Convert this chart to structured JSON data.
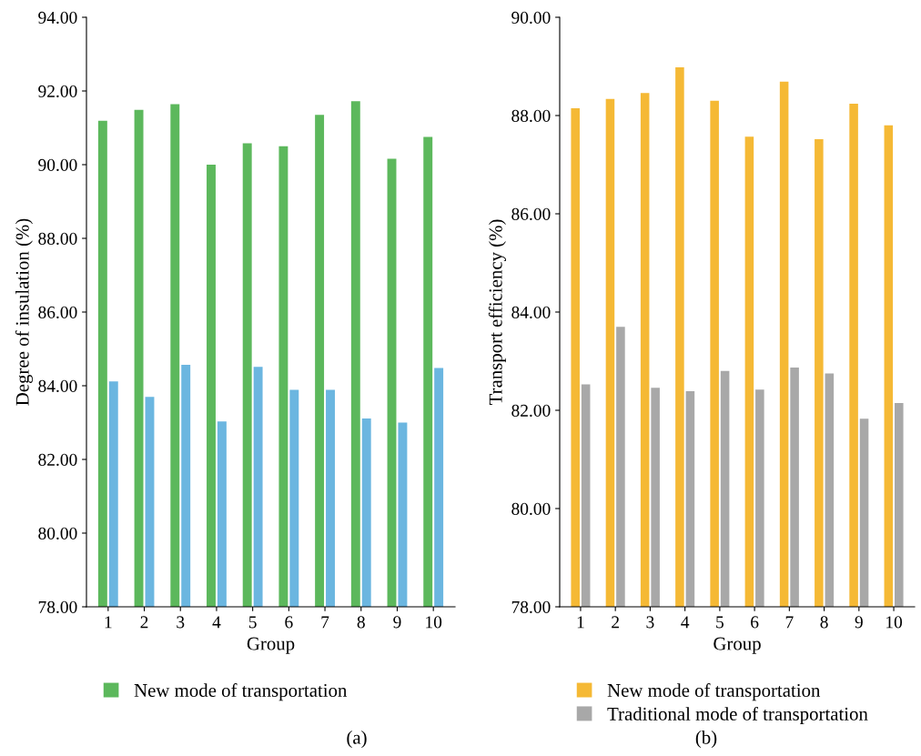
{
  "chart_data": [
    {
      "type": "bar",
      "xlabel": "Group",
      "ylabel": "Degree of insulation (%)",
      "categories": [
        "1",
        "2",
        "3",
        "4",
        "5",
        "6",
        "7",
        "8",
        "9",
        "10"
      ],
      "series": [
        {
          "name": "New mode of transportation",
          "color": "#5cb85c",
          "values": [
            91.19,
            91.49,
            91.64,
            90.0,
            90.58,
            90.5,
            91.35,
            91.72,
            90.16,
            90.75
          ]
        },
        {
          "color": "#6bb6e0",
          "values": [
            84.12,
            83.7,
            84.57,
            83.03,
            84.51,
            83.89,
            83.89,
            83.11,
            83.0,
            84.48
          ]
        }
      ],
      "ylim": [
        78,
        94
      ],
      "yticks": [
        {
          "value": 78,
          "label": "78.00"
        },
        {
          "value": 80,
          "label": "80.00"
        },
        {
          "value": 82,
          "label": "82.00"
        },
        {
          "value": 84,
          "label": "84.00"
        },
        {
          "value": 86,
          "label": "86.00"
        },
        {
          "value": 88,
          "label": "88.00"
        },
        {
          "value": 90,
          "label": "90.00"
        },
        {
          "value": 92,
          "label": "92.00"
        },
        {
          "value": 94,
          "label": "94.00"
        }
      ],
      "legend": "bottom",
      "annotations": [
        "(a)"
      ]
    },
    {
      "type": "bar",
      "xlabel": "Group",
      "ylabel": "Transport efficiency (%)",
      "categories": [
        "1",
        "2",
        "3",
        "4",
        "5",
        "6",
        "7",
        "8",
        "9",
        "10"
      ],
      "series": [
        {
          "name": "New mode of transportation",
          "color": "#f5b935",
          "values": [
            88.15,
            88.34,
            88.46,
            88.98,
            88.3,
            87.57,
            88.69,
            87.52,
            88.24,
            87.8
          ]
        },
        {
          "name": "Traditional mode of transportation",
          "color": "#a8a8a8",
          "values": [
            82.53,
            83.7,
            82.46,
            82.39,
            82.8,
            82.42,
            82.87,
            82.75,
            81.83,
            82.15
          ]
        }
      ],
      "ylim": [
        78,
        90
      ],
      "yticks": [
        {
          "value": 78,
          "label": "78.00"
        },
        {
          "value": 80,
          "label": "80.00"
        },
        {
          "value": 82,
          "label": "82.00"
        },
        {
          "value": 84,
          "label": "84.00"
        },
        {
          "value": 86,
          "label": "86.00"
        },
        {
          "value": 88,
          "label": "88.00"
        },
        {
          "value": 90,
          "label": "90.00"
        }
      ],
      "legend": "bottom",
      "annotations": [
        "(b)"
      ]
    }
  ]
}
